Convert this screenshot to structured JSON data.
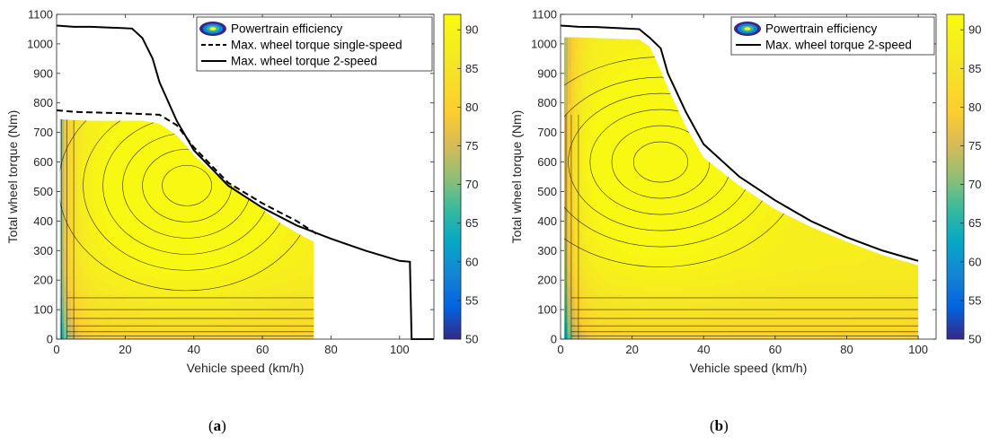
{
  "colorbar": {
    "colormap": "parula",
    "limits": [
      50,
      92
    ],
    "ticks": [
      50,
      55,
      60,
      65,
      70,
      75,
      80,
      85,
      90
    ]
  },
  "chart_data": [
    {
      "type": "contour",
      "panel": "a",
      "xlabel": "Vehicle speed (km/h)",
      "ylabel": "Total wheel torque (Nm)",
      "xlim": [
        0,
        110
      ],
      "ylim": [
        0,
        1100
      ],
      "xticks": [
        0,
        20,
        40,
        60,
        80,
        100
      ],
      "yticks": [
        0,
        100,
        200,
        300,
        400,
        500,
        600,
        700,
        800,
        900,
        1000,
        1100
      ],
      "grid": false,
      "legend_position": "top-right",
      "legend": [
        "Powertrain efficiency",
        "Max. wheel torque single-speed",
        "Max. wheel torque 2-speed"
      ],
      "efficiency_region": {
        "x_max": 75,
        "upper_boundary": [
          [
            1,
            745
          ],
          [
            5,
            742
          ],
          [
            10,
            740
          ],
          [
            25,
            740
          ],
          [
            30,
            730
          ],
          [
            35,
            690
          ],
          [
            40,
            625
          ],
          [
            45,
            570
          ],
          [
            50,
            530
          ],
          [
            55,
            485
          ],
          [
            60,
            440
          ],
          [
            65,
            395
          ],
          [
            70,
            360
          ],
          [
            75,
            330
          ]
        ],
        "peak": {
          "x": 38,
          "y": 520,
          "value": 91.5
        }
      },
      "series": [
        {
          "name": "Max. wheel torque single-speed",
          "style": "dashed",
          "x": [
            0,
            5,
            10,
            20,
            30,
            35,
            40,
            50,
            60,
            70,
            76
          ],
          "y": [
            775,
            770,
            768,
            765,
            760,
            725,
            650,
            530,
            460,
            400,
            355
          ]
        },
        {
          "name": "Max. wheel torque 2-speed",
          "style": "solid",
          "x": [
            0,
            5,
            10,
            22,
            25,
            28,
            30,
            35,
            40,
            50,
            60,
            70,
            80,
            90,
            100,
            103,
            103.5,
            110
          ],
          "y": [
            1062,
            1058,
            1058,
            1052,
            1020,
            950,
            870,
            740,
            640,
            520,
            445,
            385,
            340,
            300,
            265,
            262,
            0,
            0
          ]
        }
      ]
    },
    {
      "type": "contour",
      "panel": "b",
      "xlabel": "Vehicle speed (km/h)",
      "ylabel": "Total wheel torque (Nm)",
      "xlim": [
        0,
        105
      ],
      "ylim": [
        0,
        1100
      ],
      "xticks": [
        0,
        20,
        40,
        60,
        80,
        100
      ],
      "yticks": [
        0,
        100,
        200,
        300,
        400,
        500,
        600,
        700,
        800,
        900,
        1000,
        1100
      ],
      "grid": false,
      "legend_position": "top-right",
      "legend": [
        "Powertrain efficiency",
        "Max. wheel torque 2-speed"
      ],
      "efficiency_region": {
        "x_max": 100,
        "upper_boundary": [
          [
            1,
            1022
          ],
          [
            5,
            1022
          ],
          [
            10,
            1020
          ],
          [
            22,
            1015
          ],
          [
            25,
            990
          ],
          [
            28,
            910
          ],
          [
            30,
            850
          ],
          [
            35,
            720
          ],
          [
            40,
            615
          ],
          [
            50,
            520
          ],
          [
            60,
            440
          ],
          [
            70,
            380
          ],
          [
            80,
            330
          ],
          [
            90,
            285
          ],
          [
            100,
            250
          ]
        ],
        "peak": {
          "x": 28,
          "y": 600,
          "value": 91.8
        }
      },
      "series": [
        {
          "name": "Max. wheel torque 2-speed",
          "style": "solid",
          "x": [
            0,
            5,
            10,
            22,
            25,
            28,
            30,
            35,
            40,
            50,
            60,
            70,
            80,
            90,
            100
          ],
          "y": [
            1062,
            1058,
            1057,
            1050,
            1020,
            985,
            900,
            770,
            660,
            550,
            470,
            400,
            345,
            300,
            265
          ]
        }
      ]
    }
  ],
  "captions": [
    "(a)",
    "(b)"
  ]
}
